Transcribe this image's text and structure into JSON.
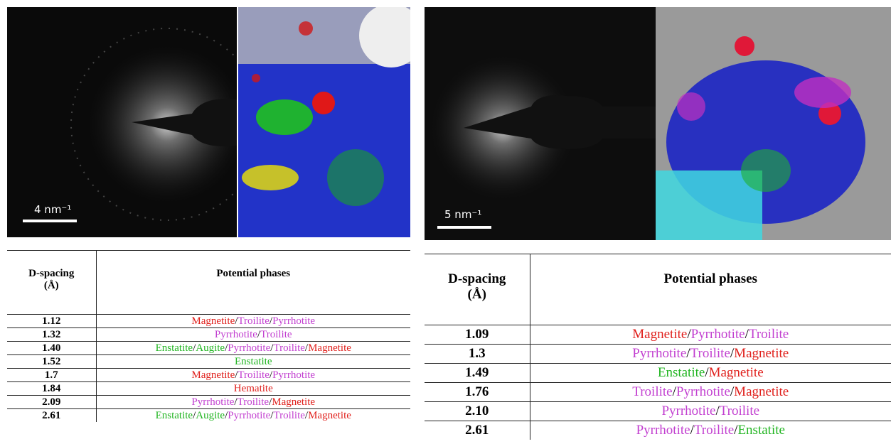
{
  "separator": "/",
  "panels": [
    {
      "scale_label": "4 nm⁻¹",
      "table": {
        "d_header": [
          "D-spacing",
          "(Å)"
        ],
        "phase_header": "Potential phases",
        "rows": [
          {
            "d": "1.12",
            "phases": [
              {
                "name": "Magnetite",
                "color": "#e0201c"
              },
              {
                "name": "Troilite",
                "color": "#c23fd0"
              },
              {
                "name": "Pyrrhotite",
                "color": "#c23fd0"
              }
            ]
          },
          {
            "d": "1.32",
            "phases": [
              {
                "name": "Pyrrhotite",
                "color": "#c23fd0"
              },
              {
                "name": "Troilite",
                "color": "#c23fd0"
              }
            ]
          },
          {
            "d": "1.40",
            "phases": [
              {
                "name": "Enstatite",
                "color": "#22b522"
              },
              {
                "name": "Augite",
                "color": "#22b522"
              },
              {
                "name": "Pyrrhotite",
                "color": "#c23fd0"
              },
              {
                "name": "Troilite",
                "color": "#c23fd0"
              },
              {
                "name": "Magnetite",
                "color": "#e0201c"
              }
            ]
          },
          {
            "d": "1.52",
            "phases": [
              {
                "name": "Enstatite",
                "color": "#22b522"
              }
            ]
          },
          {
            "d": "1.7",
            "phases": [
              {
                "name": "Magnetite",
                "color": "#e0201c"
              },
              {
                "name": "Troilite",
                "color": "#c23fd0"
              },
              {
                "name": "Pyrrhotite",
                "color": "#c23fd0"
              }
            ]
          },
          {
            "d": "1.84",
            "phases": [
              {
                "name": "Hematite",
                "color": "#e0201c"
              }
            ]
          },
          {
            "d": "2.09",
            "phases": [
              {
                "name": "Pyrrhotite",
                "color": "#c23fd0"
              },
              {
                "name": "Troilite",
                "color": "#c23fd0"
              },
              {
                "name": "Magnetite",
                "color": "#e0201c"
              }
            ]
          },
          {
            "d": "2.61",
            "phases": [
              {
                "name": "Enstatite",
                "color": "#22b522"
              },
              {
                "name": "Augite",
                "color": "#22b522"
              },
              {
                "name": "Pyrrhotite",
                "color": "#c23fd0"
              },
              {
                "name": "Troilite",
                "color": "#c23fd0"
              },
              {
                "name": "Magnetite",
                "color": "#e0201c"
              }
            ]
          }
        ]
      }
    },
    {
      "scale_label": "5 nm⁻¹",
      "table": {
        "d_header": [
          "D-spacing",
          "(Å)"
        ],
        "phase_header": "Potential phases",
        "rows": [
          {
            "d": "1.09",
            "phases": [
              {
                "name": "Magnetite",
                "color": "#e0201c"
              },
              {
                "name": "Pyrrhotite",
                "color": "#c23fd0"
              },
              {
                "name": "Troilite",
                "color": "#c23fd0"
              }
            ]
          },
          {
            "d": "1.3",
            "phases": [
              {
                "name": "Pyrrhotite",
                "color": "#c23fd0"
              },
              {
                "name": "Troilite",
                "color": "#c23fd0"
              },
              {
                "name": "Magnetite",
                "color": "#e0201c"
              }
            ]
          },
          {
            "d": "1.49",
            "phases": [
              {
                "name": "Enstatite",
                "color": "#22b522"
              },
              {
                "name": "Magnetite",
                "color": "#e0201c"
              }
            ]
          },
          {
            "d": "1.76",
            "phases": [
              {
                "name": "Troilite",
                "color": "#c23fd0"
              },
              {
                "name": "Pyrrhotite",
                "color": "#c23fd0"
              },
              {
                "name": "Magnetite",
                "color": "#e0201c"
              }
            ]
          },
          {
            "d": "2.10",
            "phases": [
              {
                "name": "Pyrrhotite",
                "color": "#c23fd0"
              },
              {
                "name": "Troilite",
                "color": "#c23fd0"
              }
            ]
          },
          {
            "d": "2.61",
            "phases": [
              {
                "name": "Pyrrhotite",
                "color": "#c23fd0"
              },
              {
                "name": "Troilite",
                "color": "#c23fd0"
              },
              {
                "name": "Enstatite",
                "color": "#22b522"
              }
            ]
          }
        ]
      }
    }
  ]
}
